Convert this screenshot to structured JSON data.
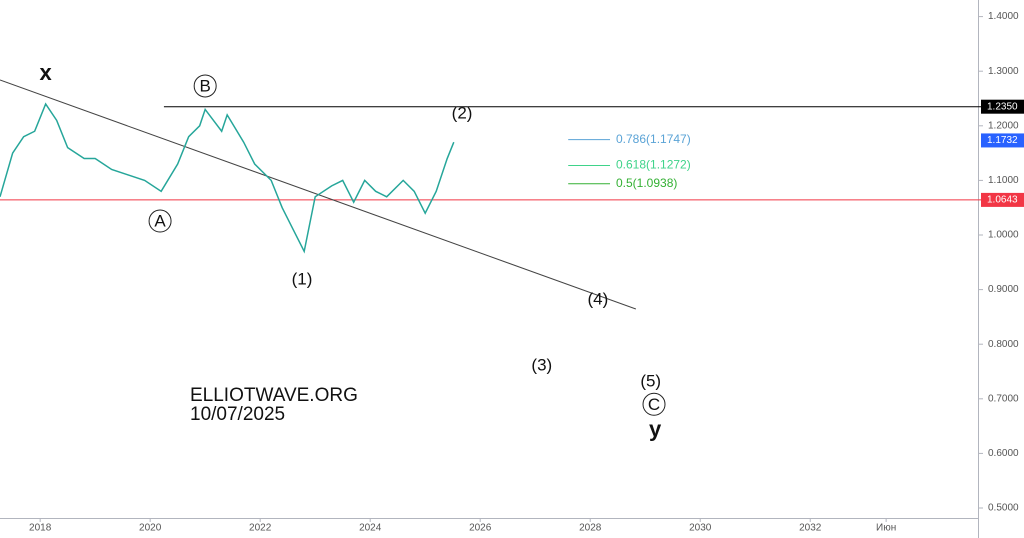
{
  "chart_data": {
    "type": "line",
    "x": [
      2017.27,
      2017.5,
      2017.7,
      2017.9,
      2018.1,
      2018.3,
      2018.5,
      2018.8,
      2019.0,
      2019.3,
      2019.6,
      2019.9,
      2020.2,
      2020.5,
      2020.7,
      2020.9,
      2021.0,
      2021.3,
      2021.4,
      2021.7,
      2021.9,
      2022.2,
      2022.4,
      2022.6,
      2022.8,
      2023.0,
      2023.3,
      2023.5,
      2023.7,
      2023.9,
      2024.1,
      2024.3,
      2024.6,
      2024.8,
      2025.0,
      2025.2,
      2025.4,
      2025.52
    ],
    "values": [
      1.07,
      1.15,
      1.18,
      1.19,
      1.24,
      1.21,
      1.16,
      1.14,
      1.14,
      1.12,
      1.11,
      1.1,
      1.08,
      1.13,
      1.18,
      1.2,
      1.23,
      1.19,
      1.22,
      1.17,
      1.13,
      1.1,
      1.05,
      1.01,
      0.97,
      1.07,
      1.09,
      1.1,
      1.06,
      1.1,
      1.08,
      1.07,
      1.1,
      1.08,
      1.04,
      1.08,
      1.14,
      1.17
    ],
    "color": "#26a69a",
    "xlim": [
      2017.27,
      2035.05
    ],
    "xticks": [
      2018,
      2020,
      2022,
      2024,
      2026,
      2028,
      2030,
      2032,
      {
        "value": 2033.38,
        "label": "Июн"
      }
    ],
    "ylim": [
      0.4817,
      1.4304
    ],
    "yticks": [
      {
        "value": 1.4,
        "label": "1.4000"
      },
      {
        "value": 1.3,
        "label": "1.3000"
      },
      {
        "value": 1.2,
        "label": "1.2000"
      },
      {
        "value": 1.1,
        "label": "1.1000"
      },
      {
        "value": 1.0,
        "label": "1.0000"
      },
      {
        "value": 0.9,
        "label": "0.9000"
      },
      {
        "value": 0.8,
        "label": "0.8000"
      },
      {
        "value": 0.7,
        "label": "0.7000"
      },
      {
        "value": 0.6,
        "label": "0.6000"
      },
      {
        "value": 0.5,
        "label": "0.5000"
      }
    ],
    "levels": [
      {
        "value": 1.235,
        "label": "1.2350",
        "color": "#000000",
        "x_start": 2020.25
      },
      {
        "value": 1.0643,
        "label": "1.0643",
        "color": "#f23645"
      }
    ],
    "last_price": {
      "value": 1.1732,
      "label": "1.1732",
      "color": "#2962ff"
    },
    "fib": [
      {
        "value": 1.1747,
        "label": "0.786(1.1747)",
        "color": "#5aa3d6"
      },
      {
        "value": 1.1272,
        "label": "0.618(1.1272)",
        "color": "#3fd38a"
      },
      {
        "value": 1.0938,
        "label": "0.5(1.0938)",
        "color": "#33b033"
      }
    ],
    "fib_x": [
      2027.6,
      2028.36
    ],
    "trendline": {
      "x": [
        2017.27,
        2028.83
      ],
      "y": [
        1.2839,
        0.8645
      ]
    },
    "annotations": [
      {
        "label": "x",
        "x": 2018.1,
        "y": 1.2967,
        "bold": true
      },
      {
        "label": "B",
        "x": 2021.0,
        "y": 1.273,
        "circled": true
      },
      {
        "label": "(2)",
        "x": 2025.67,
        "y": 1.2234
      },
      {
        "label": "A",
        "x": 2020.18,
        "y": 1.0256,
        "circled": true
      },
      {
        "label": "(1)",
        "x": 2022.76,
        "y": 0.919
      },
      {
        "label": "(4)",
        "x": 2028.14,
        "y": 0.883
      },
      {
        "label": "(3)",
        "x": 2027.12,
        "y": 0.762
      },
      {
        "label": "(5)",
        "x": 2029.1,
        "y": 0.733
      },
      {
        "label": "C",
        "x": 2029.16,
        "y": 0.69,
        "circled": true
      },
      {
        "label": "y",
        "x": 2029.18,
        "y": 0.643,
        "bold": true
      }
    ],
    "watermark": [
      "ELLIOTWAVE.ORG",
      "10/07/2025"
    ]
  }
}
